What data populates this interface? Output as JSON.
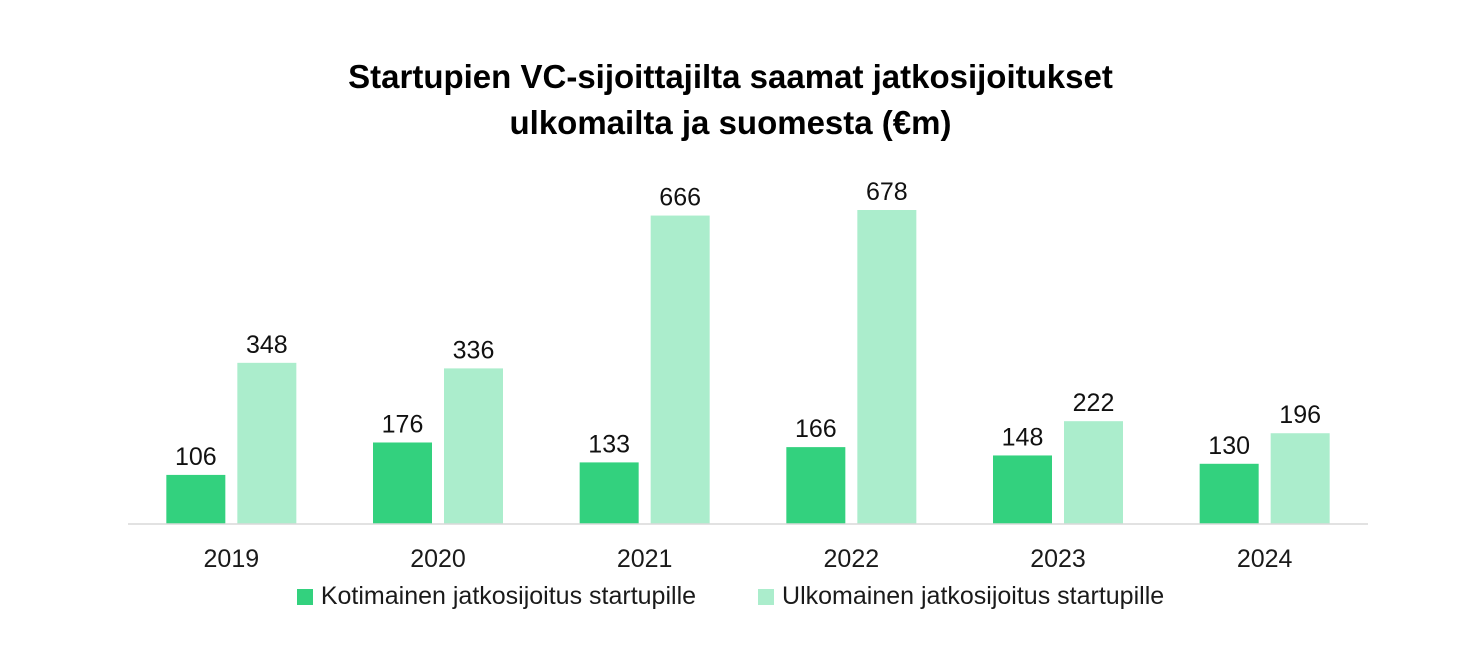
{
  "chart_data": {
    "type": "bar",
    "title_lines": [
      "Startupien VC-sijoittajilta saamat jatkosijoitukset",
      "ulkomailta ja suomesta (€m)"
    ],
    "categories": [
      "2019",
      "2020",
      "2021",
      "2022",
      "2023",
      "2024"
    ],
    "series": [
      {
        "name": "Kotimainen jatkosijoitus startupille",
        "color": "#33d17e",
        "values": [
          106,
          176,
          133,
          166,
          148,
          130
        ]
      },
      {
        "name": "Ulkomainen jatkosijoitus startupille",
        "color": "#abedcc",
        "values": [
          348,
          336,
          666,
          678,
          222,
          196
        ]
      }
    ],
    "ylim": [
      0,
      678
    ],
    "grid": false,
    "legend_position": "bottom",
    "axis_color": "#d9d9d9"
  }
}
